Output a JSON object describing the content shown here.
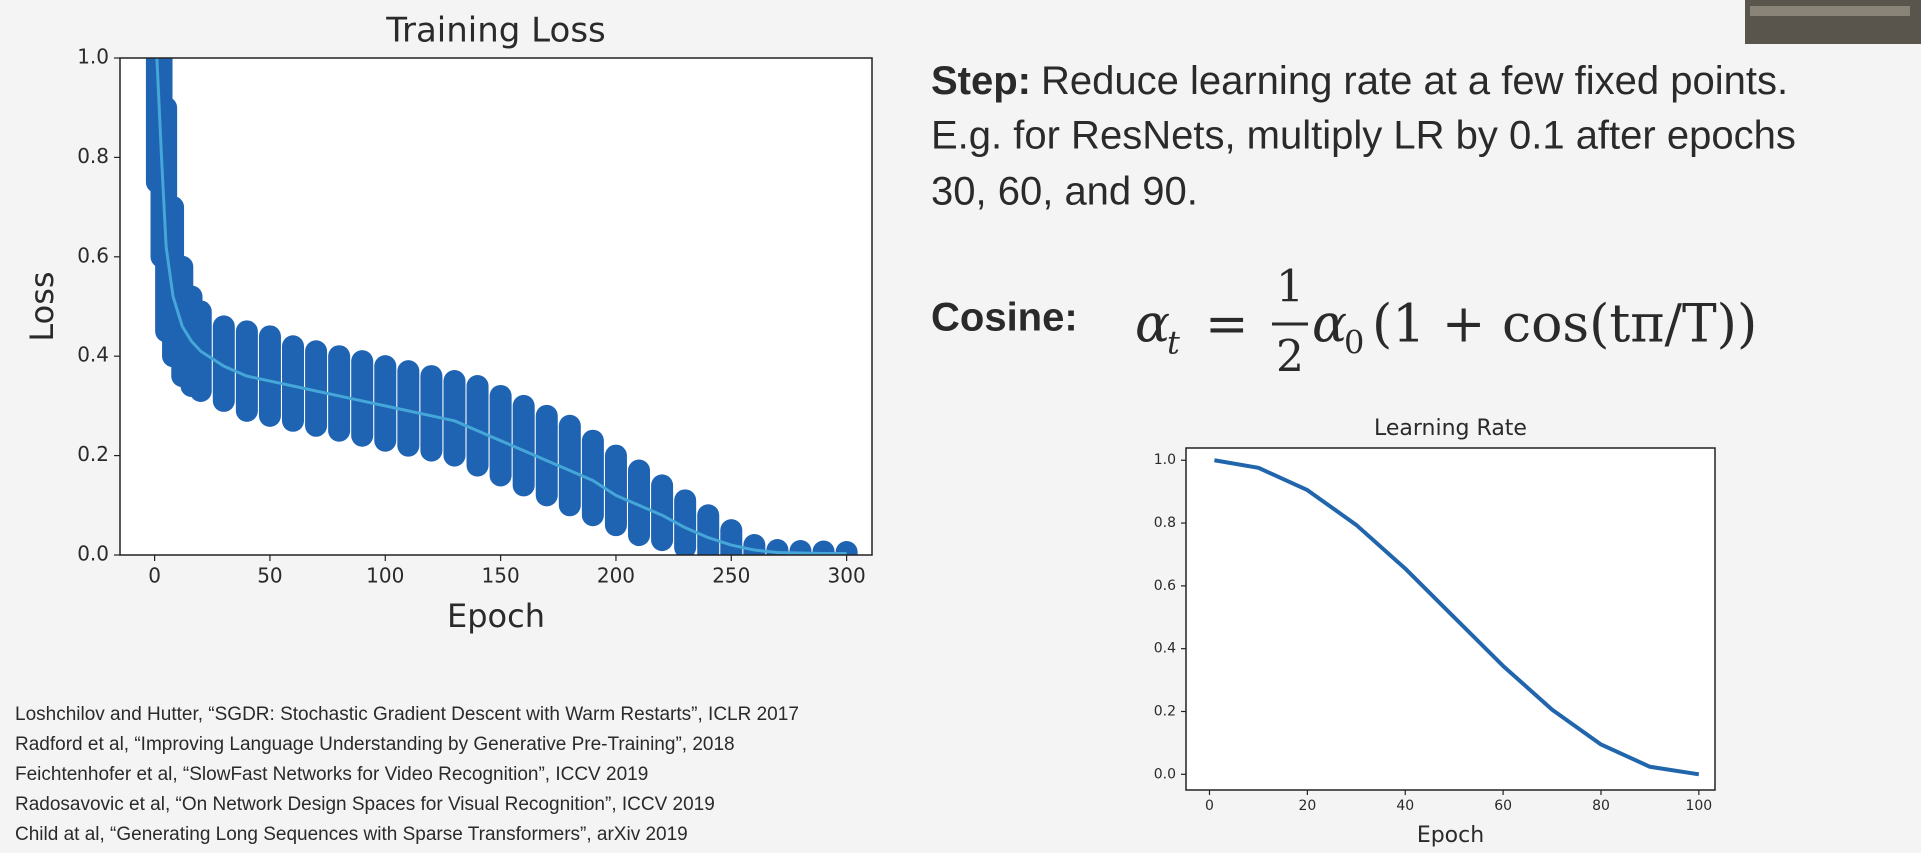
{
  "chart_data": [
    {
      "type": "line",
      "title": "Training Loss",
      "xlabel": "Epoch",
      "ylabel": "Loss",
      "x": [
        1,
        3,
        5,
        8,
        12,
        16,
        20,
        30,
        40,
        50,
        60,
        70,
        80,
        90,
        100,
        110,
        120,
        130,
        140,
        150,
        160,
        170,
        180,
        190,
        200,
        210,
        220,
        230,
        240,
        250,
        260,
        270,
        280,
        290,
        300
      ],
      "values": [
        1.0,
        0.8,
        0.62,
        0.52,
        0.46,
        0.43,
        0.41,
        0.38,
        0.36,
        0.35,
        0.34,
        0.33,
        0.32,
        0.31,
        0.3,
        0.29,
        0.28,
        0.27,
        0.25,
        0.23,
        0.21,
        0.19,
        0.17,
        0.15,
        0.12,
        0.1,
        0.08,
        0.055,
        0.035,
        0.02,
        0.01,
        0.005,
        0.004,
        0.003,
        0.003
      ],
      "band_low": [
        0.75,
        0.6,
        0.45,
        0.4,
        0.36,
        0.34,
        0.33,
        0.31,
        0.29,
        0.28,
        0.27,
        0.26,
        0.25,
        0.24,
        0.23,
        0.22,
        0.21,
        0.2,
        0.18,
        0.16,
        0.14,
        0.12,
        0.1,
        0.08,
        0.06,
        0.04,
        0.03,
        0.015,
        0.005,
        0,
        0,
        0,
        0,
        0,
        0
      ],
      "band_high": [
        1.0,
        1.0,
        0.9,
        0.7,
        0.58,
        0.52,
        0.49,
        0.46,
        0.45,
        0.44,
        0.42,
        0.41,
        0.4,
        0.39,
        0.38,
        0.37,
        0.36,
        0.35,
        0.34,
        0.32,
        0.3,
        0.28,
        0.26,
        0.23,
        0.2,
        0.17,
        0.14,
        0.11,
        0.08,
        0.05,
        0.02,
        0.01,
        0.008,
        0.007,
        0.006
      ],
      "color": "#45a6d8",
      "band_color": "#1f63b3",
      "xlim": [
        -15,
        311
      ],
      "ylim": [
        0,
        1
      ],
      "xticks": [
        0,
        50,
        100,
        150,
        200,
        250,
        300
      ],
      "yticks": [
        {
          "value": 0,
          "label": "0.0"
        },
        {
          "value": 0.2,
          "label": "0.2"
        },
        {
          "value": 0.4,
          "label": "0.4"
        },
        {
          "value": 0.6,
          "label": "0.6"
        },
        {
          "value": 0.8,
          "label": "0.8"
        },
        {
          "value": 1,
          "label": "1.0"
        }
      ]
    },
    {
      "type": "line",
      "title": "Learning Rate",
      "xlabel": "Epoch",
      "x": [
        1,
        10,
        20,
        30,
        40,
        50,
        60,
        70,
        80,
        90,
        100
      ],
      "values": [
        1.0,
        0.976,
        0.905,
        0.794,
        0.655,
        0.5,
        0.345,
        0.206,
        0.095,
        0.024,
        0.0
      ],
      "color": "#2166ac",
      "xlim": [
        -4.8,
        103.3
      ],
      "ylim": [
        -0.05,
        1.039
      ],
      "xticks": [
        0,
        20,
        40,
        60,
        80,
        100
      ],
      "yticks": [
        {
          "value": 0,
          "label": "0.0"
        },
        {
          "value": 0.2,
          "label": "0.2"
        },
        {
          "value": 0.4,
          "label": "0.4"
        },
        {
          "value": 0.6,
          "label": "0.6"
        },
        {
          "value": 0.8,
          "label": "0.8"
        },
        {
          "value": 1,
          "label": "1.0"
        }
      ]
    }
  ],
  "text": {
    "step_label": "Step:",
    "step_lines": [
      "Reduce learning rate at a few fixed points.",
      "E.g. for ResNets, multiply LR by 0.1 after epochs",
      "30, 60, and 90."
    ],
    "cosine_label": "Cosine:",
    "formula": [
      "α",
      "t",
      "=",
      "1",
      "2",
      "α",
      "0",
      "(1 + cos(tπ/T))"
    ]
  },
  "references": [
    "Loshchilov and Hutter, “SGDR: Stochastic Gradient Descent with Warm Restarts”, ICLR 2017",
    "Radford et al, “Improving Language Understanding by Generative Pre-Training”, 2018",
    "Feichtenhofer et al, “SlowFast Networks for Video Recognition”, ICCV 2019",
    "Radosavovic et al, “On Network Design Spaces for Visual Recognition”, ICCV 2019",
    "Child at al, “Generating Long Sequences with Sparse Transformers”, arXiv 2019"
  ]
}
